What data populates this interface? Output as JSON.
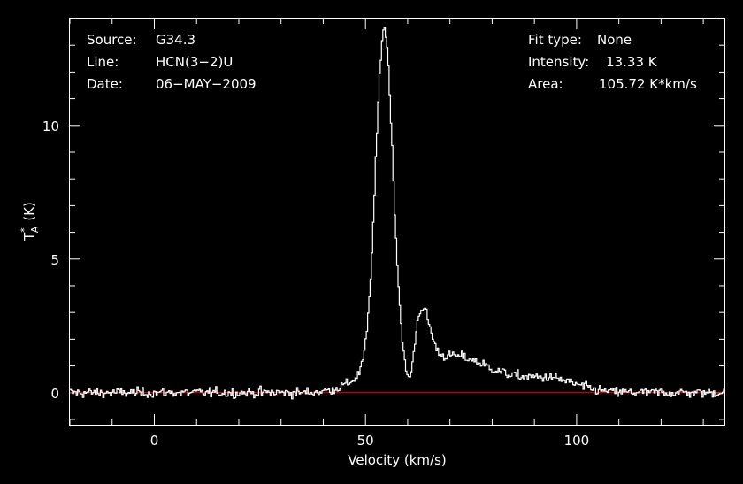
{
  "info_left": [
    {
      "key": "Source:",
      "value": "G34.3"
    },
    {
      "key": "Line:",
      "value": "HCN(3−2)U"
    },
    {
      "key": "Date:",
      "value": "06−MAY−2009"
    }
  ],
  "info_right": [
    {
      "key": "Fit type:",
      "value": "None"
    },
    {
      "key": "Intensity:",
      "value": "13.33 K"
    },
    {
      "key": "Area:",
      "value": "105.72 K*km/s"
    }
  ],
  "colors": {
    "background": "#000000",
    "spectrum": "#ffffff",
    "baseline": "#ff0000",
    "axes": "#ffffff"
  },
  "chart_data": {
    "type": "line",
    "xlabel": "Velocity (km/s)",
    "ylabel_main": "T",
    "ylabel_sup": "*",
    "ylabel_sub": "A",
    "ylabel_unit": "(K)",
    "xlim": [
      -20,
      135
    ],
    "ylim": [
      -1.2,
      14
    ],
    "xticks": [
      0,
      50,
      100
    ],
    "yticks": [
      0,
      5,
      10
    ],
    "xtick_labels": [
      "0",
      "50",
      "100"
    ],
    "ytick_labels": [
      "0",
      "5",
      "10"
    ],
    "baseline_y": 0,
    "series": [
      {
        "components": [
          {
            "type": "gaussian",
            "center": 54.3,
            "sigma": 2.0,
            "amplitude": 12.6
          },
          {
            "type": "gaussian",
            "center": 54.0,
            "sigma": 6.0,
            "amplitude": 0.9
          },
          {
            "type": "gaussian",
            "center": 60.3,
            "sigma": 1.1,
            "amplitude": -1.3
          },
          {
            "type": "gaussian",
            "center": 63.2,
            "sigma": 1.9,
            "amplitude": 2.1
          },
          {
            "type": "gaussian",
            "center": 70.0,
            "sigma": 7.5,
            "amplitude": 1.2
          },
          {
            "type": "gaussian",
            "center": 85.0,
            "sigma": 10.0,
            "amplitude": 0.45
          },
          {
            "type": "gaussian",
            "center": 95.0,
            "sigma": 5.0,
            "amplitude": 0.25
          }
        ],
        "x_range": [
          -20,
          135
        ],
        "noise_rms": 0.13,
        "channel_width": 0.3
      }
    ]
  }
}
